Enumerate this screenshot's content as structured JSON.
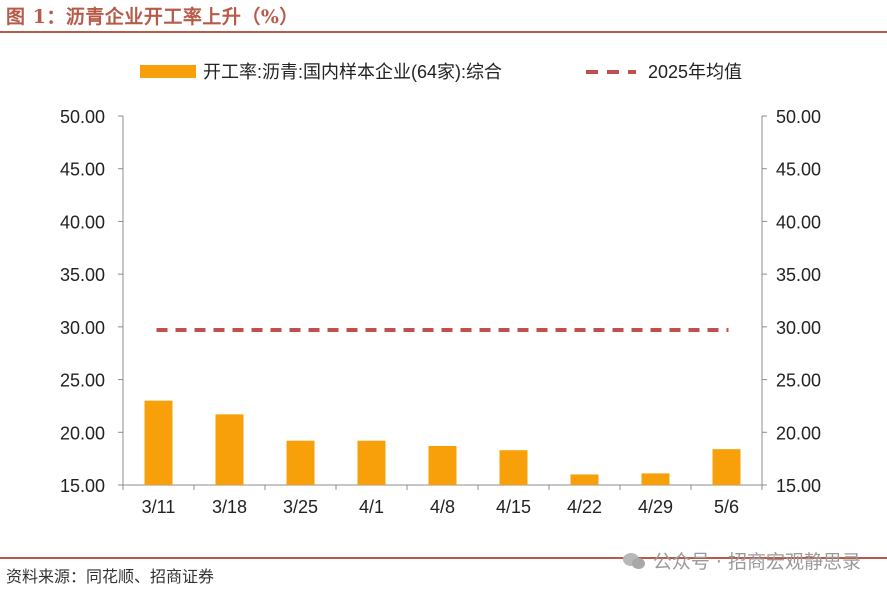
{
  "header": {
    "title": "图 1：沥青企业开工率上升（%）"
  },
  "footer": {
    "source": "资料来源：同花顺、招商证券",
    "watermark": "公众号 · 招商宏观静思录"
  },
  "chart_data": {
    "type": "bar",
    "title": "",
    "categories": [
      "3/11",
      "3/18",
      "3/25",
      "4/1",
      "4/8",
      "4/15",
      "4/22",
      "4/29",
      "5/6"
    ],
    "series": [
      {
        "name": "开工率:沥青:国内样本企业(64家):综合",
        "type": "bar",
        "color": "#f7a00a",
        "values": [
          23.0,
          21.7,
          19.2,
          19.2,
          18.7,
          18.3,
          16.0,
          16.1,
          18.4
        ]
      },
      {
        "name": "2025年均值",
        "type": "line",
        "style": "dashed",
        "color": "#bf504d",
        "values": [
          29.7,
          29.7,
          29.7,
          29.7,
          29.7,
          29.7,
          29.7,
          29.7,
          29.7
        ]
      }
    ],
    "ylim": [
      15,
      50
    ],
    "yticks": [
      "15.00",
      "20.00",
      "25.00",
      "30.00",
      "35.00",
      "40.00",
      "45.00",
      "50.00"
    ],
    "y2ticks": [
      "15.00",
      "20.00",
      "25.00",
      "30.00",
      "35.00",
      "40.00",
      "45.00",
      "50.00"
    ],
    "legend_position": "top",
    "grid": false
  }
}
